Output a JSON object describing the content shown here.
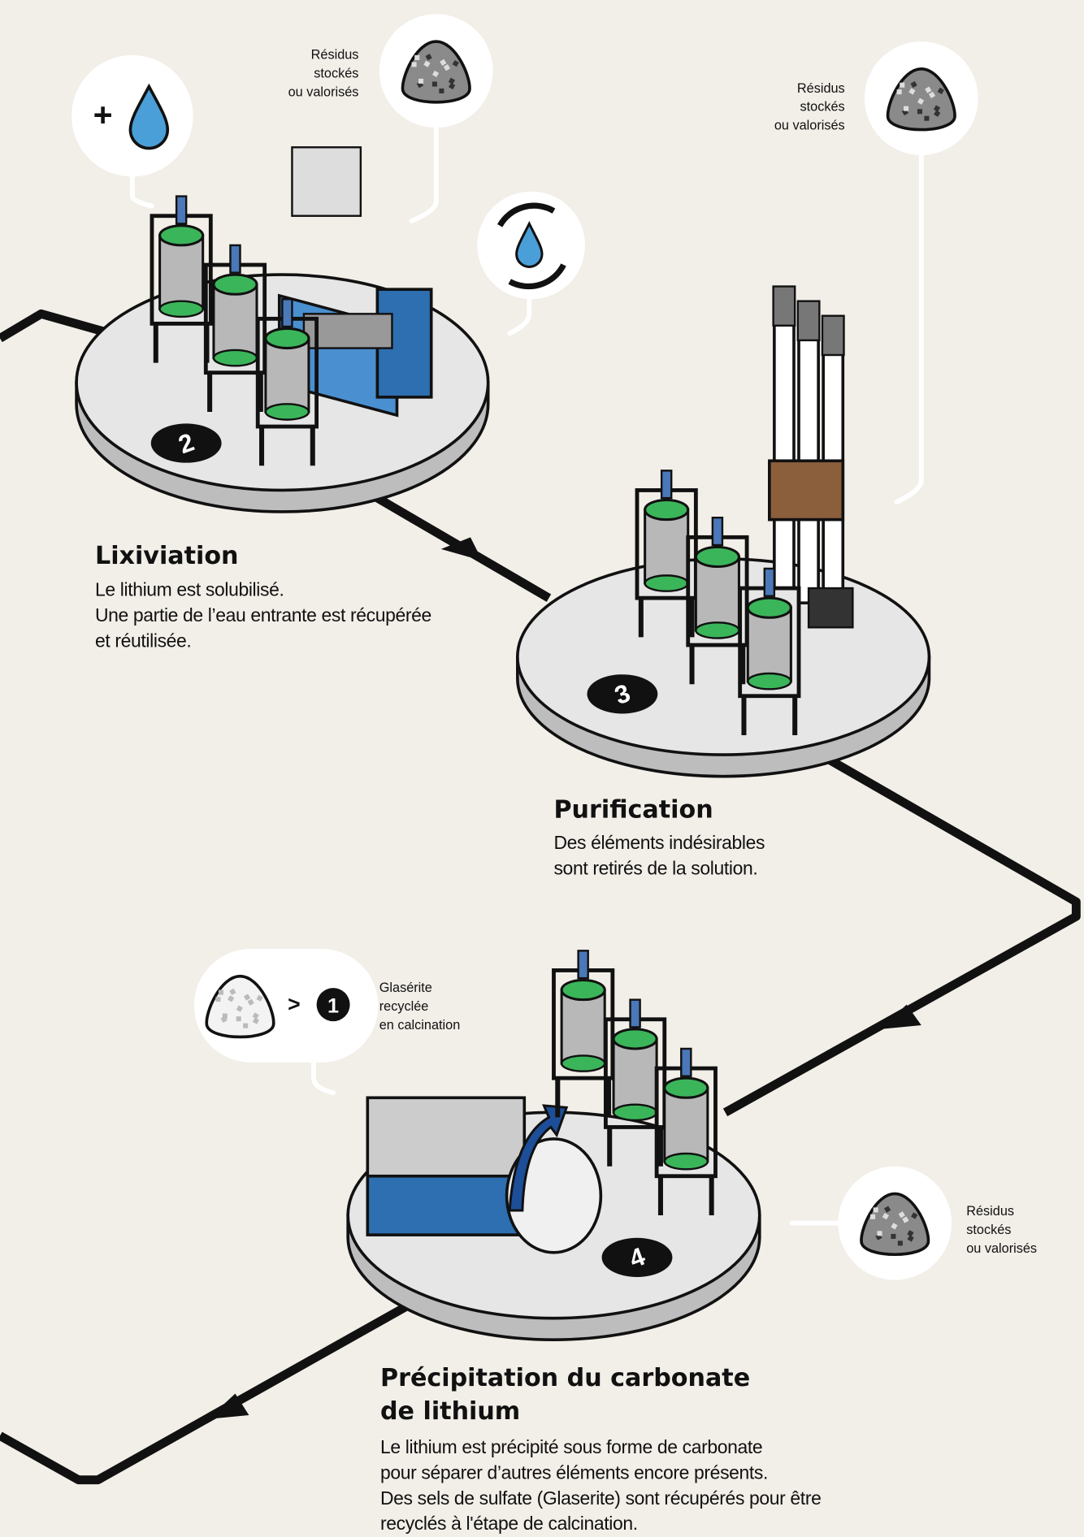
{
  "steps": [
    {
      "number": "2",
      "title": [
        "Lixiviation"
      ],
      "description": [
        "Le lithium est solubilisé.",
        "Une partie de l’eau entrante est récupérée",
        "et réutilisée."
      ]
    },
    {
      "number": "3",
      "title": [
        "Purification"
      ],
      "description": [
        "Des éléments indésirables",
        "sont retirés de la solution."
      ]
    },
    {
      "number": "4",
      "title": [
        "Précipitation du carbonate",
        "de lithium"
      ],
      "description": [
        "Le lithium est précipité sous forme de carbonate",
        "pour séparer d’autres éléments encore présents.",
        "Des sels de sulfate (Glaserite) sont récupérés pour être",
        "recyclés à l'étape de calcination."
      ]
    }
  ],
  "water_icon": "+",
  "residue_callouts": [
    {
      "label": [
        "Résidus",
        "stockés",
        "ou valorisés"
      ]
    },
    {
      "label": [
        "Résidus",
        "stockés",
        "ou valorisés"
      ]
    },
    {
      "label": [
        "Résidus",
        "stockés",
        "ou valorisés"
      ]
    }
  ],
  "recycle_callout": {
    "arrow": ">",
    "target": "1",
    "label": [
      "Glasérite",
      "recyclée",
      "en calcination"
    ]
  }
}
